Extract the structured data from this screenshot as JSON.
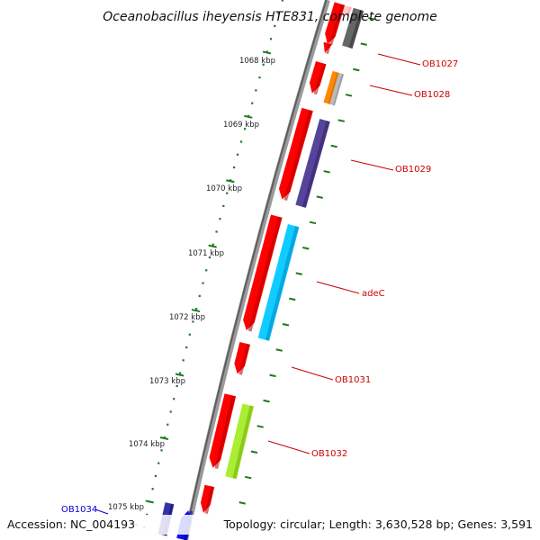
{
  "title": "Oceanobacillus iheyensis HTE831, complete genome",
  "footer": {
    "accession": "Accession: NC_004193",
    "topology": "Topology: circular; Length: 3,630,528 bp; Genes: 3,591"
  },
  "colors": {
    "backbone": "#777777",
    "tick": "#1e7a1e",
    "forward_gene": "#ff0000",
    "label_red": "#cc0000",
    "label_blue": "#0000cc"
  },
  "ruler": {
    "unit": "kbp",
    "labels": [
      "1068 kbp",
      "1069 kbp",
      "1070 kbp",
      "1071 kbp",
      "1072 kbp",
      "1073 kbp",
      "1074 kbp",
      "1075 kbp"
    ]
  },
  "gene_labels": [
    {
      "name": "OB1027",
      "color": "#cc0000"
    },
    {
      "name": "OB1028",
      "color": "#cc0000"
    },
    {
      "name": "OB1029",
      "color": "#cc0000"
    },
    {
      "name": "adeC",
      "color": "#cc0000"
    },
    {
      "name": "OB1031",
      "color": "#cc0000"
    },
    {
      "name": "OB1032",
      "color": "#cc0000"
    },
    {
      "name": "OB1034",
      "color": "#0000cc"
    }
  ]
}
